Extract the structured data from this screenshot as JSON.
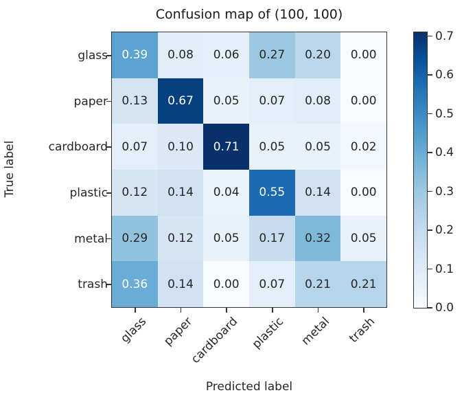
{
  "chart_data": {
    "type": "heatmap",
    "title": "Confusion map of (100, 100)",
    "xlabel": "Predicted label",
    "ylabel": "True label",
    "x_categories": [
      "glass",
      "paper",
      "cardboard",
      "plastic",
      "metal",
      "trash"
    ],
    "y_categories": [
      "glass",
      "paper",
      "cardboard",
      "plastic",
      "metal",
      "trash"
    ],
    "values": [
      [
        0.39,
        0.08,
        0.06,
        0.27,
        0.2,
        0.0
      ],
      [
        0.13,
        0.67,
        0.05,
        0.07,
        0.08,
        0.0
      ],
      [
        0.07,
        0.1,
        0.71,
        0.05,
        0.05,
        0.02
      ],
      [
        0.12,
        0.14,
        0.04,
        0.55,
        0.14,
        0.0
      ],
      [
        0.29,
        0.12,
        0.05,
        0.17,
        0.32,
        0.05
      ],
      [
        0.36,
        0.14,
        0.0,
        0.07,
        0.21,
        0.21
      ]
    ],
    "colormap": "Blues",
    "colorbar": {
      "range": [
        0.0,
        0.71
      ],
      "ticks": [
        "0.0",
        "0.1",
        "0.2",
        "0.3",
        "0.4",
        "0.5",
        "0.6",
        "0.7"
      ]
    },
    "grid": false
  }
}
